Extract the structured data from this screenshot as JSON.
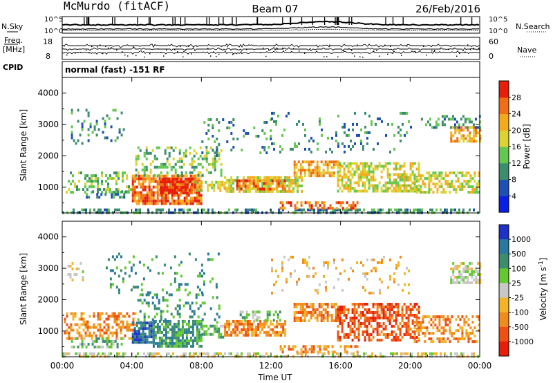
{
  "header": {
    "station": "McMurdo (fitACF)",
    "beam": "Beam 07",
    "date": "26/Feb/2016"
  },
  "status_panels": {
    "nsky_label": "N.Sky",
    "nsearch_label": "N.Search",
    "freq_label_line1": "Freq.",
    "freq_label_line2": "[MHz]",
    "nave_label": "Nave",
    "cpid_label": "CPID",
    "cpid_value": "normal (fast) -151 RF",
    "noise_ticks_left": [
      "10^5",
      "10^0"
    ],
    "noise_ticks_right": [
      "10^5",
      "10^0"
    ],
    "freq_ticks": [
      "18",
      "8"
    ],
    "nave_ticks": [
      "60",
      "0"
    ]
  },
  "chart_data": [
    {
      "type": "heatmap",
      "name": "power",
      "xlabel": "",
      "ylabel": "Slant Range [km]",
      "xlim": [
        0,
        24
      ],
      "ylim": [
        180,
        4500
      ],
      "x_ticks": [
        "00:00",
        "04:00",
        "08:00",
        "12:00",
        "16:00",
        "20:00",
        "00:00"
      ],
      "x_tick_values": [
        0,
        4,
        8,
        12,
        16,
        20,
        24
      ],
      "y_ticks": [
        "1000",
        "2000",
        "3000",
        "4000"
      ],
      "y_tick_values": [
        1000,
        2000,
        3000,
        4000
      ],
      "colorbar": {
        "label": "Power [dB]",
        "ticks": [
          "4",
          "8",
          "12",
          "16",
          "20",
          "24",
          "28"
        ],
        "colors": [
          "#0a1ee6",
          "#1e50b4",
          "#3c8c6e",
          "#64c850",
          "#dcd232",
          "#f5aa1e",
          "#f06e14",
          "#e61e0a"
        ]
      },
      "regions": [
        {
          "t0": 0.0,
          "t1": 24.0,
          "r0": 200,
          "r1": 320,
          "level": 2,
          "density": 0.5
        },
        {
          "t0": 0.2,
          "t1": 4.2,
          "r0": 850,
          "r1": 1500,
          "level": 3,
          "density": 0.35
        },
        {
          "t0": 1.0,
          "t1": 3.8,
          "r0": 650,
          "r1": 900,
          "level": 2,
          "density": 0.4
        },
        {
          "t0": 4.0,
          "t1": 8.0,
          "r0": 500,
          "r1": 1400,
          "level": 6,
          "density": 0.8
        },
        {
          "t0": 5.6,
          "t1": 7.4,
          "r0": 800,
          "r1": 1300,
          "level": 7,
          "density": 0.85
        },
        {
          "t0": 4.2,
          "t1": 9.2,
          "r0": 1400,
          "r1": 2300,
          "level": 3,
          "density": 0.35
        },
        {
          "t0": 7.6,
          "t1": 9.4,
          "r0": 850,
          "r1": 1200,
          "level": 4,
          "density": 0.6
        },
        {
          "t0": 9.3,
          "t1": 13.8,
          "r0": 850,
          "r1": 1350,
          "level": 4,
          "density": 0.7
        },
        {
          "t0": 10.0,
          "t1": 12.8,
          "r0": 950,
          "r1": 1250,
          "level": 6,
          "density": 0.55
        },
        {
          "t0": 12.5,
          "t1": 17.0,
          "r0": 300,
          "r1": 550,
          "level": 6,
          "density": 0.5
        },
        {
          "t0": 13.3,
          "t1": 16.0,
          "r0": 1350,
          "r1": 1850,
          "level": 5,
          "density": 0.65
        },
        {
          "t0": 15.8,
          "t1": 20.5,
          "r0": 900,
          "r1": 1800,
          "level": 4,
          "density": 0.6
        },
        {
          "t0": 20.2,
          "t1": 24.0,
          "r0": 800,
          "r1": 1500,
          "level": 4,
          "density": 0.55
        },
        {
          "t0": 22.3,
          "t1": 24.0,
          "r0": 2500,
          "r1": 2950,
          "level": 5,
          "density": 0.6
        },
        {
          "t0": 20.5,
          "t1": 24.0,
          "r0": 2900,
          "r1": 3300,
          "level": 2,
          "density": 0.35
        },
        {
          "t0": 0.5,
          "t1": 3.5,
          "r0": 2400,
          "r1": 3500,
          "level": 2,
          "density": 0.15
        },
        {
          "t0": 8.0,
          "t1": 12.0,
          "r0": 2000,
          "r1": 3200,
          "level": 2,
          "density": 0.12
        },
        {
          "t0": 12.0,
          "t1": 20.0,
          "r0": 2100,
          "r1": 3400,
          "level": 2,
          "density": 0.1
        }
      ]
    },
    {
      "type": "heatmap",
      "name": "velocity",
      "xlabel": "Time UT",
      "ylabel": "Slant Range [km]",
      "xlim": [
        0,
        24
      ],
      "ylim": [
        180,
        4500
      ],
      "x_ticks": [
        "00:00",
        "04:00",
        "08:00",
        "12:00",
        "16:00",
        "20:00",
        "00:00"
      ],
      "x_tick_values": [
        0,
        4,
        8,
        12,
        16,
        20,
        24
      ],
      "y_ticks": [
        "1000",
        "2000",
        "3000",
        "4000"
      ],
      "y_tick_values": [
        1000,
        2000,
        3000,
        4000
      ],
      "colorbar": {
        "label": "Velocity [m s-1]",
        "ticks": [
          "1000",
          "500",
          "100",
          "25",
          "-25",
          "-100",
          "-500",
          "-1000"
        ],
        "colors": [
          "#1e32c8",
          "#2878a0",
          "#3c8c6e",
          "#64c832",
          "#c8c8c8",
          "#f5b428",
          "#f08c1e",
          "#f05014",
          "#e61e0a"
        ]
      },
      "regions": [
        {
          "t0": 0.0,
          "t1": 24.0,
          "r0": 200,
          "r1": 320,
          "level": 4,
          "density": 0.5
        },
        {
          "t0": 0.1,
          "t1": 4.2,
          "r0": 800,
          "r1": 1600,
          "level": 6,
          "density": 0.5
        },
        {
          "t0": 0.5,
          "t1": 3.5,
          "r0": 450,
          "r1": 800,
          "level": 3,
          "density": 0.45
        },
        {
          "t0": 4.0,
          "t1": 5.2,
          "r0": 600,
          "r1": 1300,
          "level": 1,
          "density": 0.8
        },
        {
          "t0": 5.2,
          "t1": 8.0,
          "r0": 500,
          "r1": 1350,
          "level": 2,
          "density": 0.75
        },
        {
          "t0": 8.0,
          "t1": 9.3,
          "r0": 800,
          "r1": 1200,
          "level": 3,
          "density": 0.6
        },
        {
          "t0": 4.2,
          "t1": 9.0,
          "r0": 1300,
          "r1": 2200,
          "level": 2,
          "density": 0.2
        },
        {
          "t0": 9.3,
          "t1": 12.8,
          "r0": 850,
          "r1": 1350,
          "level": 6,
          "density": 0.7
        },
        {
          "t0": 10.2,
          "t1": 12.5,
          "r0": 1350,
          "r1": 1650,
          "level": 3,
          "density": 0.35
        },
        {
          "t0": 12.5,
          "t1": 17.0,
          "r0": 300,
          "r1": 550,
          "level": 6,
          "density": 0.45
        },
        {
          "t0": 13.3,
          "t1": 16.0,
          "r0": 1350,
          "r1": 1900,
          "level": 6,
          "density": 0.65
        },
        {
          "t0": 15.8,
          "t1": 20.5,
          "r0": 700,
          "r1": 1900,
          "level": 7,
          "density": 0.55
        },
        {
          "t0": 20.2,
          "t1": 24.0,
          "r0": 700,
          "r1": 1500,
          "level": 6,
          "density": 0.45
        },
        {
          "t0": 22.3,
          "t1": 24.0,
          "r0": 2500,
          "r1": 3200,
          "level": 4,
          "density": 0.6
        },
        {
          "t0": 0.3,
          "t1": 1.2,
          "r0": 2600,
          "r1": 3200,
          "level": 4,
          "density": 0.35
        },
        {
          "t0": 2.5,
          "t1": 9.0,
          "r0": 2200,
          "r1": 3500,
          "level": 2,
          "density": 0.1
        },
        {
          "t0": 12.0,
          "t1": 20.0,
          "r0": 2200,
          "r1": 3400,
          "level": 5,
          "density": 0.1
        }
      ]
    }
  ]
}
